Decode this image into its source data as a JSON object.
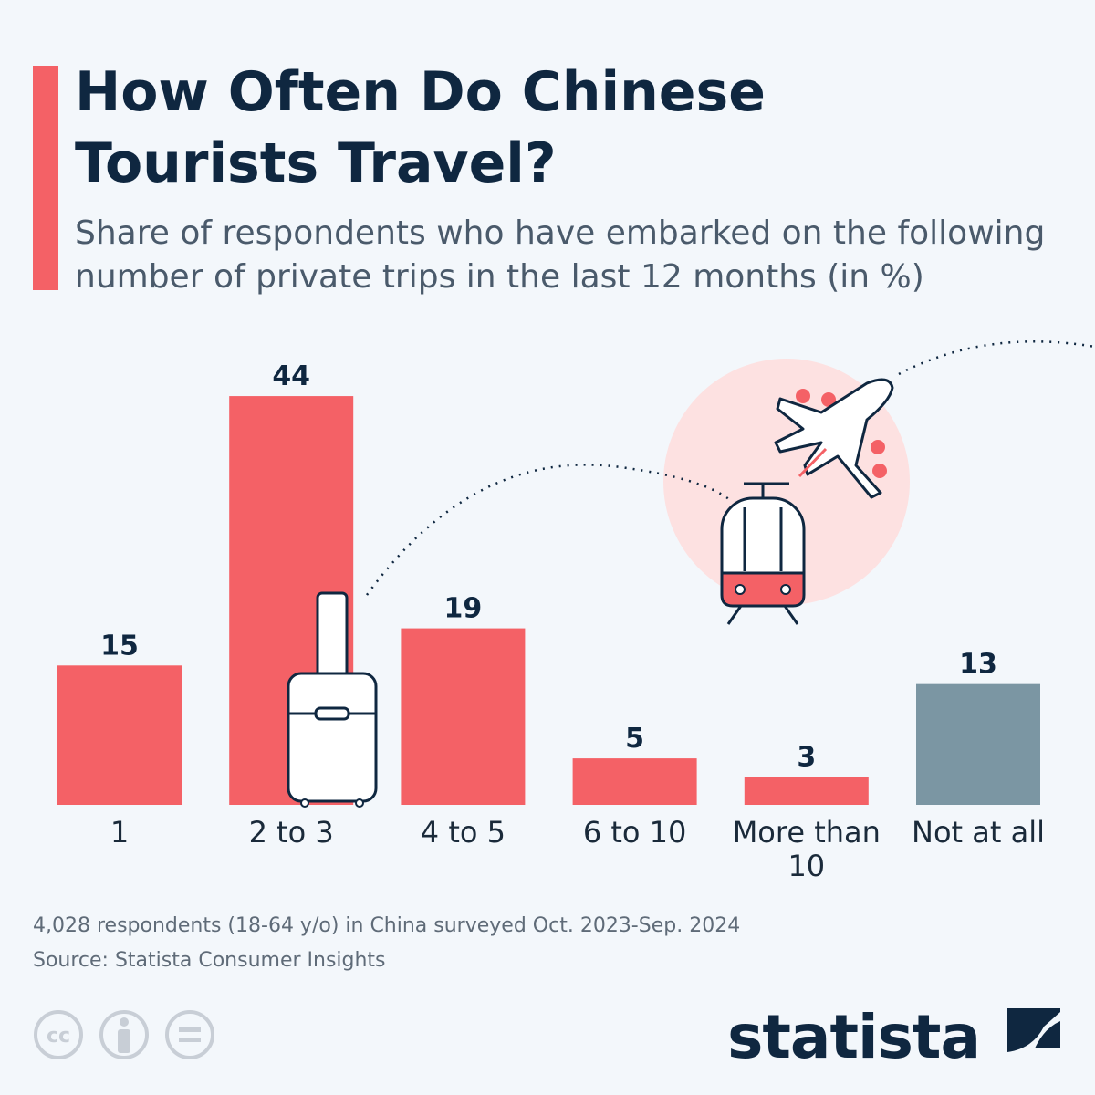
{
  "chart_data": {
    "type": "bar",
    "title": "How Often Do Chinese Tourists Travel?",
    "subtitle": "Share of respondents who have embarked on the following number of private trips in the last 12 months (in %)",
    "categories": [
      "1",
      "2 to 3",
      "4 to 5",
      "6 to 10",
      "More than 10",
      "Not at all"
    ],
    "values": [
      15,
      44,
      19,
      5,
      3,
      13
    ],
    "colors": [
      "#f46166",
      "#f46166",
      "#f46166",
      "#f46166",
      "#f46166",
      "#7b96a3"
    ],
    "note": "4,028 respondents (18-64 y/o) in China surveyed Oct. 2023-Sep. 2024",
    "source": "Source: Statista Consumer Insights",
    "brand": "statista"
  }
}
